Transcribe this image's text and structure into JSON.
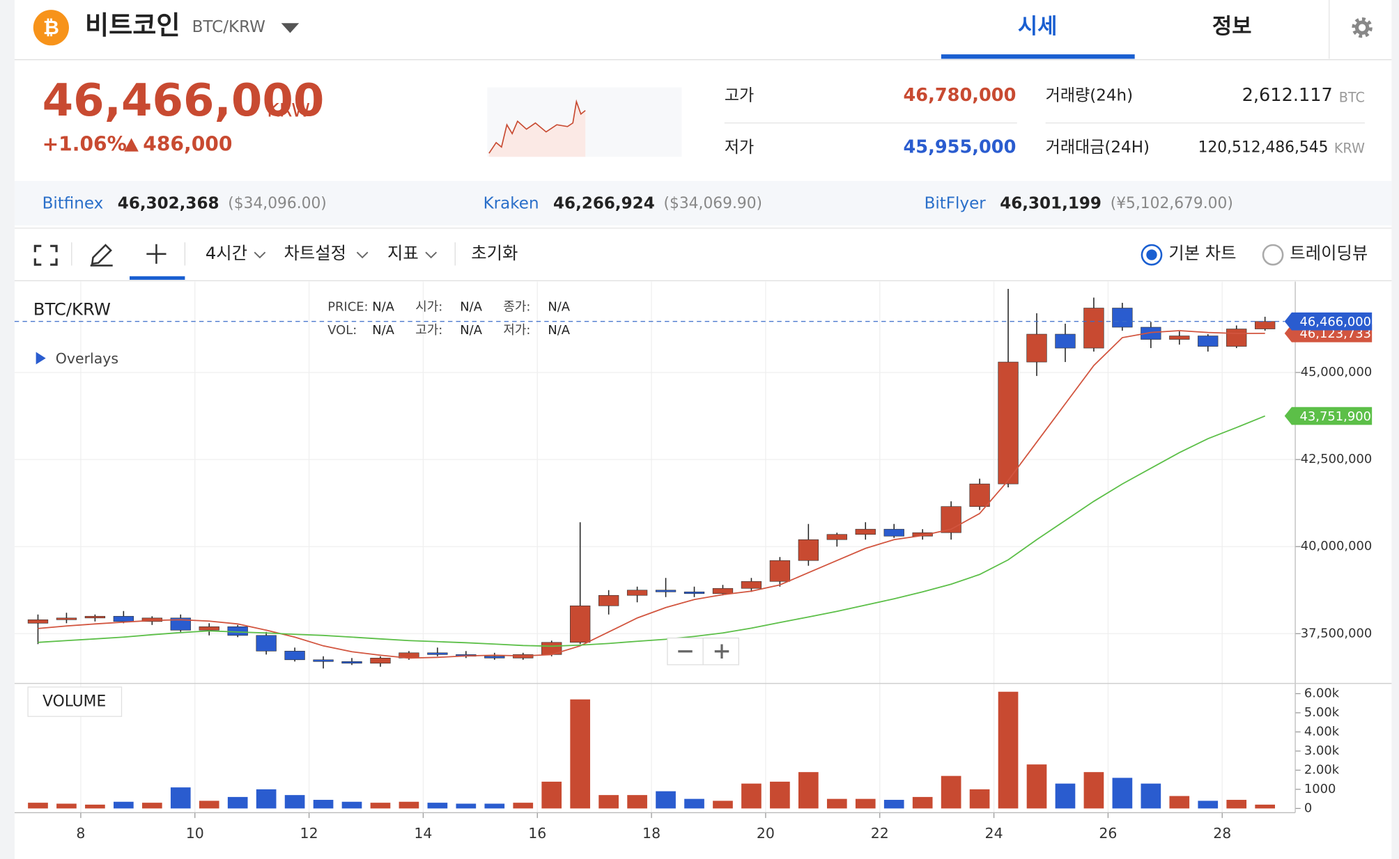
{
  "header": {
    "name": "비트코인",
    "pair": "BTC/KRW",
    "tabs": [
      "시세",
      "정보"
    ]
  },
  "ticker": {
    "price": "46,466,000",
    "unit": "KRW",
    "change": "+1.06%",
    "change_amount": "486,000",
    "high_label": "고가",
    "high": "46,780,000",
    "low_label": "저가",
    "low": "45,955,000",
    "volume_label": "거래량(24h)",
    "volume": "2,612.117",
    "volume_unit": "BTC",
    "value_label": "거래대금(24H)",
    "value": "120,512,486,545",
    "value_unit": "KRW"
  },
  "exchanges": [
    {
      "name": "Bitfinex",
      "price": "46,302,368",
      "foreign": "($34,096.00)"
    },
    {
      "name": "Kraken",
      "price": "46,266,924",
      "foreign": "($34,069.90)"
    },
    {
      "name": "BitFlyer",
      "price": "46,301,199",
      "foreign": "(¥5,102,679.00)"
    }
  ],
  "toolbar": {
    "interval": "4시간",
    "settings": "차트설정",
    "indicators": "지표",
    "reset": "초기화",
    "modes": [
      "기본 차트",
      "트레이딩뷰"
    ]
  },
  "chart_data": {
    "type": "candlestick",
    "symbol": "BTC/KRW",
    "overlays": "Overlays",
    "volume_title": "VOLUME",
    "info": [
      {
        "label": "PRICE:",
        "value": "N/A"
      },
      {
        "label": "시가:",
        "value": "N/A"
      },
      {
        "label": "종가:",
        "value": "N/A"
      },
      {
        "label": "VOL:",
        "value": "N/A"
      },
      {
        "label": "고가:",
        "value": "N/A"
      },
      {
        "label": "저가:",
        "value": "N/A"
      }
    ],
    "up_color": "#c84a31",
    "down_color": "#2a5ccf",
    "x": [
      7.25,
      7.75,
      8.25,
      8.75,
      9.25,
      9.75,
      10.25,
      10.75,
      11.25,
      11.75,
      12.25,
      12.75,
      13.25,
      13.75,
      14.25,
      14.75,
      15.25,
      15.75,
      16.25,
      16.75,
      17.25,
      17.75,
      18.25,
      18.75,
      19.25,
      19.75,
      20.25,
      20.75,
      21.25,
      21.75,
      22.25,
      22.75,
      23.25,
      23.75,
      24.25,
      24.75,
      25.25,
      25.75,
      26.25,
      26.75,
      27.25,
      27.75,
      28.25,
      28.75
    ],
    "open": [
      37800000,
      37900000,
      37950000,
      38000000,
      37850000,
      37950000,
      37600000,
      37700000,
      37450000,
      37000000,
      36750000,
      36700000,
      36650000,
      36800000,
      36950000,
      36900000,
      36850000,
      36800000,
      36900000,
      37250000,
      38300000,
      38600000,
      38750000,
      38700000,
      38650000,
      38800000,
      39000000,
      39600000,
      40200000,
      40350000,
      40500000,
      40300000,
      40400000,
      41150000,
      41800000,
      45300000,
      46100000,
      45700000,
      46850000,
      46300000,
      45950000,
      46050000,
      45750000,
      46250000
    ],
    "high": [
      38050000,
      38100000,
      38050000,
      38150000,
      38000000,
      38050000,
      37800000,
      37750000,
      37550000,
      37100000,
      36850000,
      36800000,
      36850000,
      37000000,
      37100000,
      37000000,
      36950000,
      36950000,
      37300000,
      40700000,
      38750000,
      38850000,
      39100000,
      38850000,
      38900000,
      39100000,
      39700000,
      40650000,
      40400000,
      40700000,
      40650000,
      40500000,
      41300000,
      41950000,
      47400000,
      46700000,
      46400000,
      47150000,
      47000000,
      46450000,
      46200000,
      46100000,
      46350000,
      46600000
    ],
    "low": [
      37200000,
      37800000,
      37850000,
      37800000,
      37750000,
      37550000,
      37450000,
      37400000,
      36900000,
      36700000,
      36500000,
      36600000,
      36550000,
      36750000,
      36850000,
      36800000,
      36750000,
      36750000,
      36850000,
      37200000,
      38050000,
      38400000,
      38550000,
      38550000,
      38600000,
      38700000,
      38850000,
      39450000,
      40000000,
      40200000,
      40250000,
      40200000,
      40200000,
      41050000,
      41700000,
      44900000,
      45300000,
      45600000,
      46200000,
      45700000,
      45800000,
      45600000,
      45700000,
      46200000
    ],
    "close": [
      37900000,
      37950000,
      38000000,
      37850000,
      37950000,
      37600000,
      37700000,
      37450000,
      37000000,
      36750000,
      36700000,
      36650000,
      36800000,
      36950000,
      36900000,
      36850000,
      36800000,
      36900000,
      37250000,
      38300000,
      38600000,
      38750000,
      38700000,
      38650000,
      38800000,
      39000000,
      39600000,
      40200000,
      40350000,
      40500000,
      40300000,
      40400000,
      41150000,
      41800000,
      45300000,
      46100000,
      45700000,
      46850000,
      46300000,
      45950000,
      46050000,
      45750000,
      46250000,
      46466000
    ],
    "volume": [
      300,
      250,
      200,
      350,
      300,
      1100,
      400,
      600,
      1000,
      700,
      450,
      350,
      300,
      350,
      300,
      250,
      250,
      300,
      1400,
      5700,
      700,
      700,
      900,
      500,
      400,
      1300,
      1400,
      1900,
      500,
      500,
      450,
      600,
      1700,
      1000,
      6100,
      2300,
      1300,
      1900,
      1600,
      1300,
      650,
      400,
      450,
      200
    ],
    "series": [
      {
        "color": "#d2553f",
        "values": [
          37650000,
          37720000,
          37780000,
          37830000,
          37880000,
          37900000,
          37860000,
          37780000,
          37600000,
          37400000,
          37150000,
          36980000,
          36880000,
          36800000,
          36820000,
          36860000,
          36880000,
          36860000,
          36900000,
          37150000,
          37550000,
          37950000,
          38250000,
          38480000,
          38620000,
          38720000,
          38900000,
          39250000,
          39600000,
          39950000,
          40200000,
          40320000,
          40500000,
          40950000,
          41900000,
          43000000,
          44100000,
          45200000,
          46000000,
          46150000,
          46200000,
          46150000,
          46120000,
          46123733
        ],
        "last_label": "46,123,733"
      },
      {
        "color": "#5cbf48",
        "values": [
          37250000,
          37300000,
          37350000,
          37400000,
          37470000,
          37530000,
          37580000,
          37550000,
          37520000,
          37480000,
          37450000,
          37400000,
          37350000,
          37300000,
          37270000,
          37240000,
          37200000,
          37160000,
          37140000,
          37170000,
          37220000,
          37280000,
          37340000,
          37420000,
          37520000,
          37660000,
          37820000,
          37980000,
          38140000,
          38320000,
          38500000,
          38700000,
          38920000,
          39200000,
          39620000,
          40200000,
          40750000,
          41300000,
          41800000,
          42250000,
          42700000,
          43100000,
          43420000,
          43751900
        ],
        "last_label": "43,751,900"
      }
    ],
    "price_line": {
      "value": 46466000,
      "label": "46,466,000"
    },
    "xlim": [
      6.84,
      29.28
    ],
    "xticks": [
      8,
      10,
      12,
      14,
      16,
      18,
      20,
      22,
      24,
      26,
      28
    ],
    "ylim": [
      36070000,
      47610000
    ],
    "yticks": [
      {
        "value": 37500000,
        "label": "37,500,000"
      },
      {
        "value": 40000000,
        "label": "40,000,000"
      },
      {
        "value": 42500000,
        "label": "42,500,000"
      },
      {
        "value": 45000000,
        "label": "45,000,000"
      }
    ],
    "volume_ylim": [
      -220,
      6300
    ],
    "volume_ticks": [
      0,
      1000,
      {
        "value": 2000,
        "label": "2.00k"
      },
      {
        "value": 3000,
        "label": "3.00k"
      },
      {
        "value": 4000,
        "label": "4.00k"
      },
      {
        "value": 5000,
        "label": "5.00k"
      },
      {
        "value": 6000,
        "label": "6.00k"
      }
    ],
    "grid": true
  }
}
